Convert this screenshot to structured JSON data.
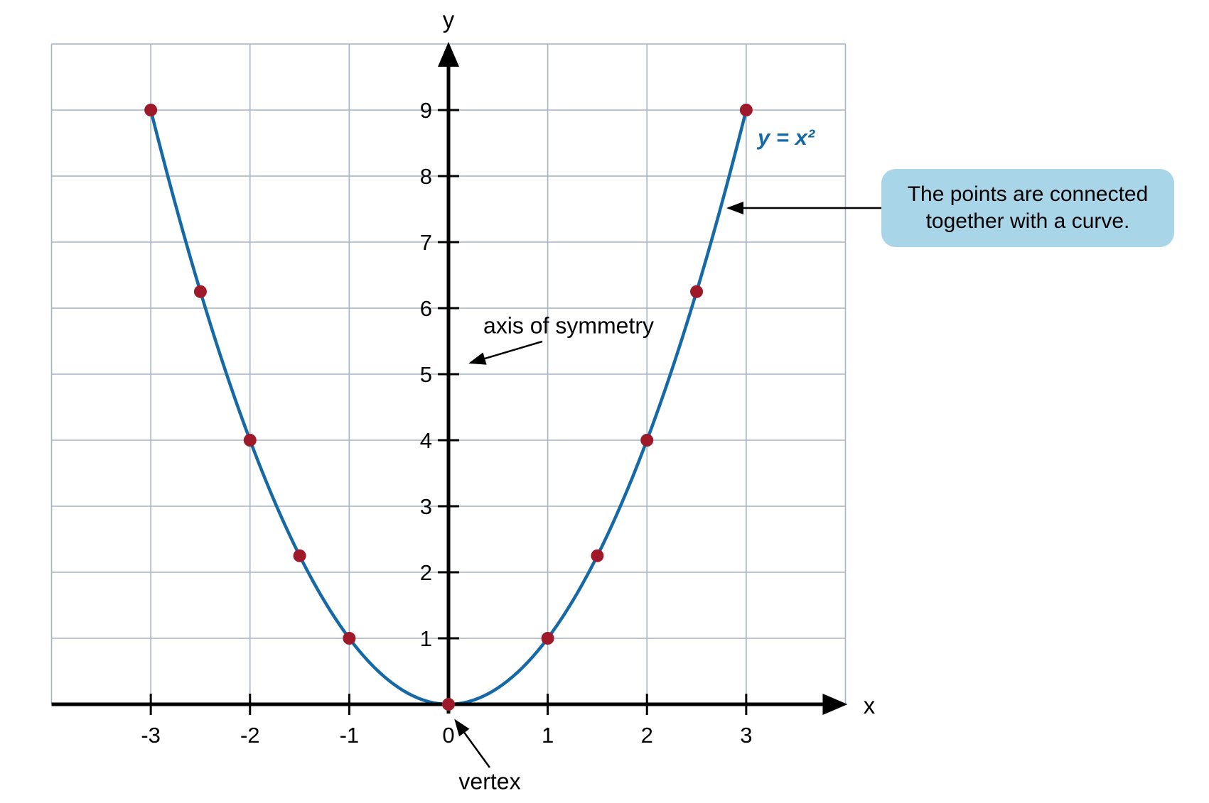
{
  "figure": {
    "x_axis_label": "x",
    "y_axis_label": "y",
    "equation_label": "y = x²",
    "annotations": {
      "axis_of_symmetry": "axis of symmetry",
      "vertex": "vertex",
      "callout": "The points are connected together with a curve."
    }
  },
  "chart_data": {
    "type": "line",
    "title": "",
    "xlabel": "x",
    "ylabel": "y",
    "curve_label": "y = x²",
    "function": "y = x^2",
    "curve_domain": [
      -3,
      3
    ],
    "xlim": [
      -4,
      4
    ],
    "ylim": [
      0,
      10
    ],
    "grid": true,
    "x_ticks": [
      -3,
      -2,
      -1,
      0,
      1,
      2,
      3
    ],
    "y_ticks": [
      1,
      2,
      3,
      4,
      5,
      6,
      7,
      8,
      9
    ],
    "points": [
      {
        "x": -3,
        "y": 9
      },
      {
        "x": -2.5,
        "y": 6.25
      },
      {
        "x": -2,
        "y": 4
      },
      {
        "x": -1.5,
        "y": 2.25
      },
      {
        "x": -1,
        "y": 1
      },
      {
        "x": 0,
        "y": 0
      },
      {
        "x": 1,
        "y": 1
      },
      {
        "x": 1.5,
        "y": 2.25
      },
      {
        "x": 2,
        "y": 4
      },
      {
        "x": 2.5,
        "y": 6.25
      },
      {
        "x": 3,
        "y": 9
      }
    ],
    "colors": {
      "curve": "#1569A6",
      "points": "#9E1A2B",
      "grid": "#A6B4C4",
      "axis": "#000000",
      "text": "#000000",
      "equation_text": "#1569A6",
      "callout_bg": "#A9D5E9"
    }
  }
}
